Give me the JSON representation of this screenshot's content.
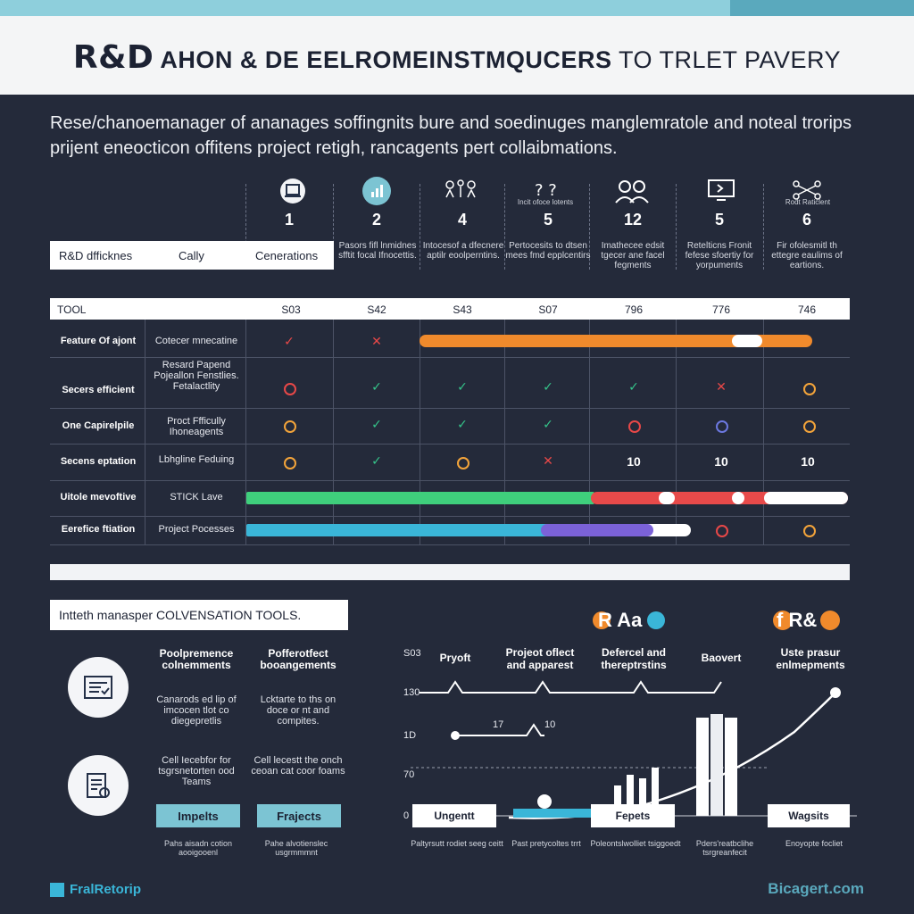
{
  "header": {
    "title_big": "R&D",
    "title_mid": " AHON & DE EELROMEINSTMQUCERS",
    "title_tail": " TO TRLET PAVERY"
  },
  "intro": "Rese/chanoemanager of ananages soffingnits bure and soedinuges manglemratole and noteal trorips prijent eneocticon offitens project retigh, rancagents pert collaibmations.",
  "top_columns": [
    {
      "icon": "laptop-icon",
      "num": "1",
      "text": ""
    },
    {
      "icon": "bar-chart-icon",
      "num": "2",
      "text": "Pasors fifl lnmidnes sfftit focal Ifnocettis."
    },
    {
      "icon": "people-network-icon",
      "num": "4",
      "text": "Intocesof a dfecnere aptilr eoolperntins."
    },
    {
      "icon": "question-icon",
      "num": "5",
      "text": "Pertocesits to dtsen mees fmd epplcentirs"
    },
    {
      "icon": "team-icon",
      "num": "12",
      "text": "Imathecee edsit tgecer ane facel fegments"
    },
    {
      "icon": "monitor-icon",
      "num": "5",
      "text": "Retelticns Fronit fefese sfoertiy for yorpuments"
    },
    {
      "icon": "drone-icon",
      "num": "6",
      "text": "Fir ofolesmitl th ettegre eaulims of eartions."
    }
  ],
  "tiny_caps": [
    "Incit ofoce lotents",
    "Rodt Raticlent"
  ],
  "left_header": {
    "col1": "R&D dfficknes",
    "col2": "Cally",
    "col3": "Cenerations"
  },
  "table_header": {
    "tool": "TOOL",
    "vals": [
      "S03",
      "S42",
      "S43",
      "S07",
      "796",
      "776",
      "746"
    ]
  },
  "rows": [
    {
      "label": "Feature Of ajont",
      "desc": "Cotecer mnecatine"
    },
    {
      "label": "Secers efficient",
      "desc": "Resard Papend Pojeallon Fenstlies. Fetalactlity"
    },
    {
      "label": "One Capirelpile",
      "desc": "Proct Ffficully Ihoneagents"
    },
    {
      "label": "Secens eptation",
      "desc": "Lbhgline Feduing"
    },
    {
      "label": "Uitole mevoftive",
      "desc": "STICK Lave"
    },
    {
      "label": "Eerefice ftiation",
      "desc": "Project Pocesses"
    }
  ],
  "row4_values": [
    "10",
    "10",
    "10"
  ],
  "section2": {
    "title": "Intteth manasper COLVENSATION TOOLS.",
    "legend1": "R Aa",
    "legend2": "f R&",
    "col_heads": [
      "Poolpremence colnemments",
      "Pofferotfect booangements"
    ],
    "col_texts": [
      "Canarods ed lip of imcocen tlot co diegepretlis",
      "Lcktarte to ths on doce or nt and compites."
    ],
    "col_texts2": [
      "Cell Iecebfor for tsgrsnetorten ood Teams",
      "Cell lecestt the onch ceoan cat coor foams"
    ],
    "buttons": [
      "Impelts",
      "Frajects"
    ],
    "foot1": [
      "Pahs aisadn cotion aooigooenl",
      "Pahe alvotienslec usgrmmmnt"
    ]
  },
  "chart": {
    "y_labels": [
      "S03",
      "130",
      "1D",
      "70",
      "0"
    ],
    "col_labels": [
      "Pryoft",
      "Projeot oflect and apparest",
      "Defercel and thereptrstins",
      "Baovert",
      "Uste prasur enlmepments"
    ],
    "mini_labels": [
      "17",
      "10"
    ],
    "boxes": [
      "Ungentt",
      "Fepets",
      "Wagsits"
    ],
    "footnotes": [
      "Paltyrsutt rodiet seeg ceitt",
      "Past pretycoltes trrt",
      "Poleontslwolliet tsiggoedt",
      "Pders'reatbclihe tsrgreanfecit",
      "Enoyopte focliet"
    ]
  },
  "footer": {
    "left": "FralRetorip",
    "right": "Bicagert.com"
  }
}
